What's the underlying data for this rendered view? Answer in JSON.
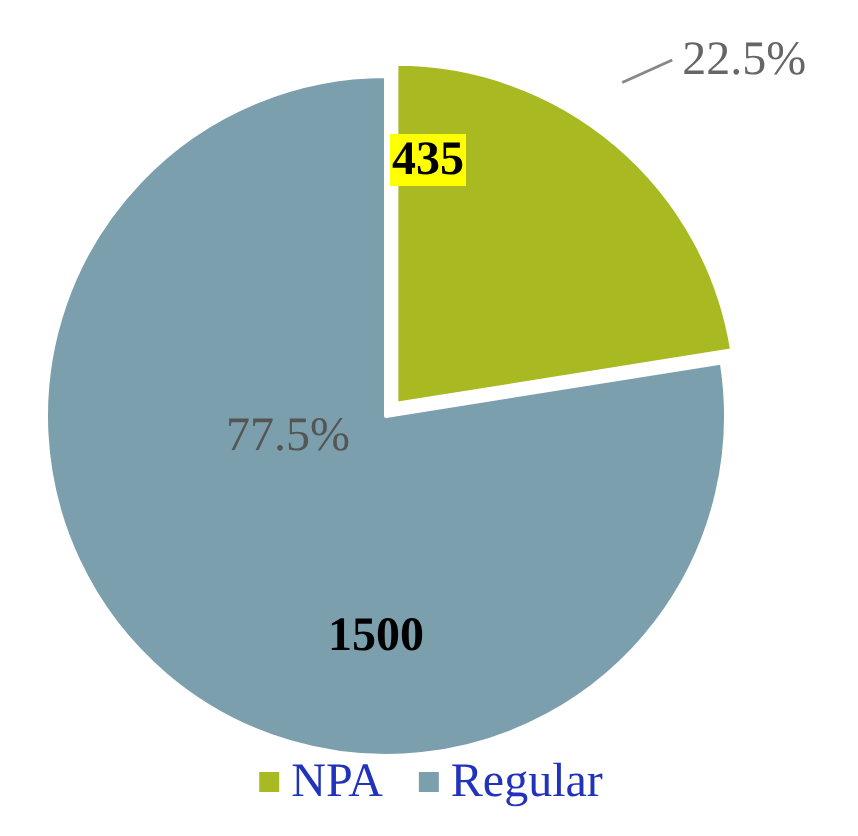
{
  "chart_data": {
    "type": "pie",
    "categories": [
      "NPA",
      "Regular"
    ],
    "values": [
      435,
      1500
    ],
    "colors": [
      "#a9b922",
      "#7c9fae"
    ],
    "data_labels": true,
    "annotations": [
      "22.5%",
      "77.5%"
    ],
    "legend": "bottom"
  }
}
